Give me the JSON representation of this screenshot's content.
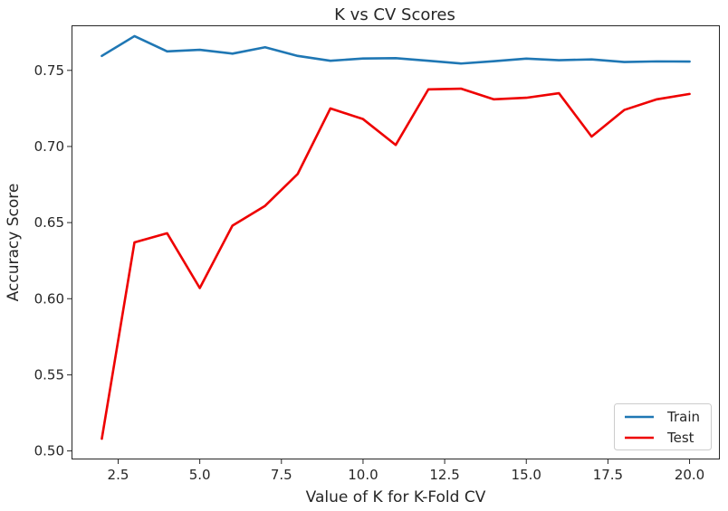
{
  "chart_data": {
    "type": "line",
    "title": "K vs CV Scores",
    "xlabel": "Value of K for K-Fold CV",
    "ylabel": "Accuracy Score",
    "xlim": [
      1.1,
      20.9
    ],
    "ylim": [
      0.495,
      0.779
    ],
    "xticks": [
      2.5,
      5.0,
      7.5,
      10.0,
      12.5,
      15.0,
      17.5,
      20.0
    ],
    "xtick_labels": [
      "2.5",
      "5.0",
      "7.5",
      "10.0",
      "12.5",
      "15.0",
      "17.5",
      "20.0"
    ],
    "yticks": [
      0.5,
      0.55,
      0.6,
      0.65,
      0.7,
      0.75
    ],
    "ytick_labels": [
      "0.50",
      "0.55",
      "0.60",
      "0.65",
      "0.70",
      "0.75"
    ],
    "grid": false,
    "legend_position": "lower-right",
    "x": [
      2,
      3,
      4,
      5,
      6,
      7,
      8,
      9,
      10,
      11,
      12,
      13,
      14,
      15,
      16,
      17,
      18,
      19,
      20
    ],
    "series": [
      {
        "name": "Train",
        "color": "#1f77b4",
        "values": [
          0.7595,
          0.7725,
          0.7625,
          0.7635,
          0.761,
          0.7652,
          0.7595,
          0.7563,
          0.7578,
          0.758,
          0.7563,
          0.7545,
          0.756,
          0.7577,
          0.7567,
          0.7572,
          0.7555,
          0.7559,
          0.7558
        ]
      },
      {
        "name": "Test",
        "color": "#ee0000",
        "values": [
          0.508,
          0.637,
          0.643,
          0.607,
          0.648,
          0.661,
          0.682,
          0.725,
          0.718,
          0.701,
          0.7375,
          0.738,
          0.731,
          0.732,
          0.735,
          0.7065,
          0.724,
          0.731,
          0.7345
        ]
      }
    ]
  }
}
